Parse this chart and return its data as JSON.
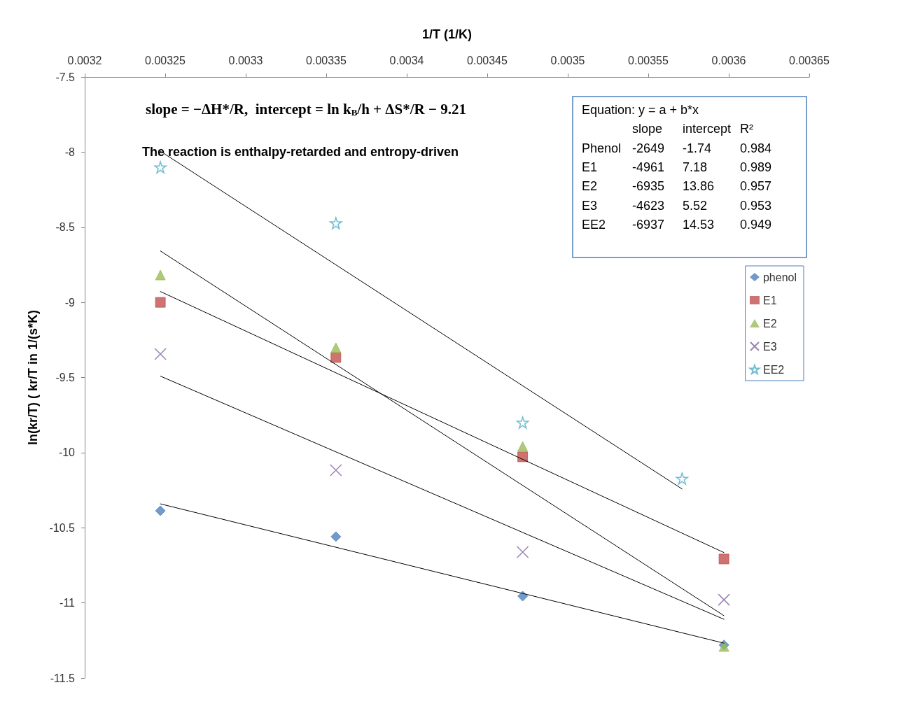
{
  "chart_data": {
    "type": "scatter",
    "xlabel": "1/T (1/K)",
    "ylabel": "ln(kr/T) ( kr/T in 1/(s*K)",
    "xlim": [
      0.0032,
      0.00365
    ],
    "xticks": [
      0.0032,
      0.00325,
      0.0033,
      0.00335,
      0.0034,
      0.00345,
      0.0035,
      0.00355,
      0.0036,
      0.00365
    ],
    "ylim": [
      -11.5,
      -7.5
    ],
    "yticks": [
      -7.5,
      -8,
      -8.5,
      -9,
      -9.5,
      -10,
      -10.5,
      -11,
      -11.5
    ],
    "grid": false,
    "legend": "right",
    "x": [
      0.003247,
      0.003356,
      0.003472,
      0.003597
    ],
    "series": [
      {
        "name": "phenol",
        "color": "#4f81bd",
        "marker": "diamond",
        "values": [
          -10.387,
          -10.559,
          -10.955,
          -11.28
        ]
      },
      {
        "name": "E1",
        "color": "#c0504d",
        "marker": "square",
        "values": [
          -9.0,
          -9.367,
          -10.028,
          -10.708
        ]
      },
      {
        "name": "E2",
        "color": "#9bbb59",
        "marker": "triangle",
        "values": [
          -8.818,
          -9.302,
          -9.959,
          -11.29
        ]
      },
      {
        "name": "E3",
        "color": "#8064a2",
        "marker": "cross",
        "values": [
          -9.344,
          -10.117,
          -10.662,
          -10.979
        ]
      },
      {
        "name": "EE2",
        "color": "#4bacc6",
        "marker": "star",
        "x": [
          0.003247,
          0.003356,
          0.003472,
          0.003571
        ],
        "values": [
          -8.101,
          -8.473,
          -9.8,
          -10.173
        ]
      },
      {
        "type": "line",
        "color": "#000000",
        "marker": "none",
        "line_style": "solid",
        "x": [
          0.003247,
          0.003597
        ],
        "values": [
          -10.341,
          -11.268
        ]
      },
      {
        "type": "line",
        "color": "#000000",
        "marker": "none",
        "line_style": "solid",
        "x": [
          0.003247,
          0.003597
        ],
        "values": [
          -8.928,
          -10.665
        ]
      },
      {
        "type": "line",
        "color": "#000000",
        "marker": "none",
        "line_style": "solid",
        "x": [
          0.003247,
          0.003597
        ],
        "values": [
          -8.658,
          -11.085
        ]
      },
      {
        "type": "line",
        "color": "#000000",
        "marker": "none",
        "line_style": "solid",
        "x": [
          0.003247,
          0.003597
        ],
        "values": [
          -9.491,
          -11.109
        ]
      },
      {
        "type": "line",
        "color": "#000000",
        "marker": "none",
        "line_style": "solid",
        "x": [
          0.003247,
          0.003571
        ],
        "values": [
          -7.994,
          -10.242
        ]
      }
    ],
    "annotations": [
      "slope = −ΔH*/R,  intercept = ln k$_{B}$/h + ΔS*/R − 9.21",
      "The reaction is enthalpy-retarded and entropy-driven",
      "Equation: y = a + b*x",
      "\tslope\tintercept\tR²",
      "Phenol\t-2649\t-1.74\t0.984",
      "E1\t-4961\t7.18\t0.989",
      "E2\t-6935\t13.86\t0.957",
      "E3\t-4623\t5.52\t0.953",
      "EE2\t-6937\t14.53\t0.949"
    ]
  }
}
